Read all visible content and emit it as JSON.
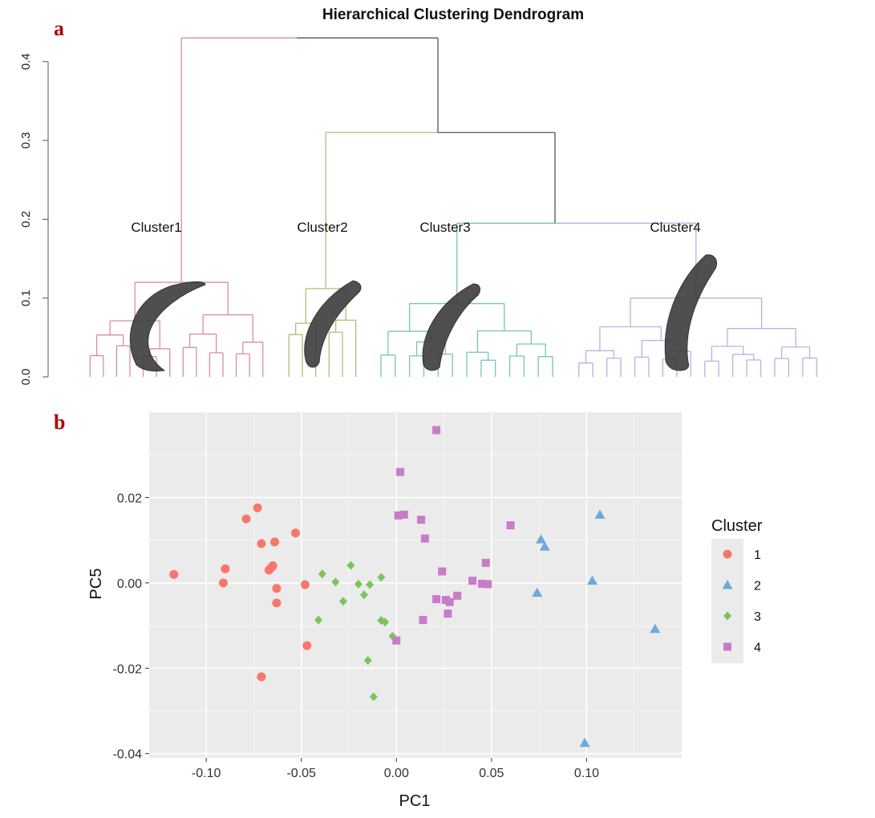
{
  "panels": {
    "a": "a",
    "b": "b"
  },
  "chart_data": [
    {
      "type": "dendrogram",
      "title": "Hierarchical Clustering Dendrogram",
      "ylim": [
        0,
        0.42
      ],
      "yticks": [
        0.0,
        0.1,
        0.2,
        0.3,
        0.4
      ],
      "ytick_labels": [
        "0.0",
        "0.1",
        "0.2",
        "0.3",
        "0.4"
      ],
      "root_height": 0.43,
      "clusters": [
        {
          "label": "Cluster1",
          "color": "#d98ca0",
          "leaves": 14,
          "merge_height": 0.12,
          "join_height": 0.43
        },
        {
          "label": "Cluster2",
          "color": "#b8b87a",
          "leaves": 6,
          "merge_height": 0.112,
          "join_height": 0.31
        },
        {
          "label": "Cluster3",
          "color": "#74c6b4",
          "leaves": 13,
          "merge_height": 0.093,
          "join_height": 0.195
        },
        {
          "label": "Cluster4",
          "color": "#b8b0e6",
          "leaves": 18,
          "merge_height": 0.1,
          "join_height": 0.195
        }
      ],
      "internal_color": "#555555"
    },
    {
      "type": "scatter",
      "xlabel": "PC1",
      "ylabel": "PC5",
      "xlim": [
        -0.13,
        0.15
      ],
      "ylim": [
        -0.041,
        0.04
      ],
      "xticks": [
        -0.1,
        -0.05,
        0.0,
        0.05,
        0.1
      ],
      "xtick_labels": [
        "-0.10",
        "-0.05",
        "0.00",
        "0.05",
        "0.10"
      ],
      "yticks": [
        -0.04,
        -0.02,
        0.0,
        0.02
      ],
      "ytick_labels": [
        "-0.04",
        "-0.02",
        "0.00",
        "0.02"
      ],
      "grid": true,
      "background": "#ebebeb",
      "legend": {
        "title": "Cluster",
        "position": "right"
      },
      "series": [
        {
          "name": "1",
          "color": "#f8766d",
          "marker": "circle",
          "points": [
            [
              -0.117,
              0.002
            ],
            [
              -0.09,
              0.0033
            ],
            [
              -0.091,
              0.0
            ],
            [
              -0.079,
              0.015
            ],
            [
              -0.073,
              0.0176
            ],
            [
              -0.071,
              0.0092
            ],
            [
              -0.067,
              0.003
            ],
            [
              -0.066,
              0.0035
            ],
            [
              -0.065,
              0.004
            ],
            [
              -0.064,
              0.0096
            ],
            [
              -0.063,
              -0.0013
            ],
            [
              -0.063,
              -0.0047
            ],
            [
              -0.053,
              0.0117
            ],
            [
              -0.048,
              -0.0004
            ],
            [
              -0.047,
              -0.0147
            ],
            [
              -0.071,
              -0.022
            ]
          ]
        },
        {
          "name": "2",
          "color": "#6fa8dc",
          "marker": "triangle",
          "points": [
            [
              0.076,
              0.0102
            ],
            [
              0.078,
              0.0085
            ],
            [
              0.107,
              0.016
            ],
            [
              0.074,
              -0.0023
            ],
            [
              0.103,
              0.0005
            ],
            [
              0.136,
              -0.0108
            ],
            [
              0.099,
              -0.0375
            ]
          ]
        },
        {
          "name": "3",
          "color": "#7cc35e",
          "marker": "diamond",
          "points": [
            [
              -0.024,
              0.0041
            ],
            [
              -0.039,
              0.0021
            ],
            [
              -0.032,
              0.0002
            ],
            [
              -0.02,
              -0.0003
            ],
            [
              -0.014,
              -0.0004
            ],
            [
              -0.008,
              0.0013
            ],
            [
              -0.017,
              -0.0028
            ],
            [
              -0.028,
              -0.0043
            ],
            [
              -0.041,
              -0.0087
            ],
            [
              -0.008,
              -0.0088
            ],
            [
              -0.006,
              -0.0092
            ],
            [
              -0.002,
              -0.0125
            ],
            [
              -0.015,
              -0.0182
            ],
            [
              -0.012,
              -0.0267
            ]
          ]
        },
        {
          "name": "4",
          "color": "#c77cc7",
          "marker": "square",
          "points": [
            [
              0.021,
              0.0358
            ],
            [
              0.002,
              0.026
            ],
            [
              0.001,
              0.0158
            ],
            [
              0.004,
              0.016
            ],
            [
              0.013,
              0.0148
            ],
            [
              0.015,
              0.0104
            ],
            [
              0.06,
              0.0135
            ],
            [
              0.047,
              0.0047
            ],
            [
              0.024,
              0.0027
            ],
            [
              0.04,
              0.0005
            ],
            [
              0.045,
              -0.0002
            ],
            [
              0.048,
              -0.0003
            ],
            [
              0.032,
              -0.003
            ],
            [
              0.021,
              -0.0038
            ],
            [
              0.026,
              -0.004
            ],
            [
              0.028,
              -0.0045
            ],
            [
              0.027,
              -0.0072
            ],
            [
              0.014,
              -0.0087
            ],
            [
              0.0,
              -0.0135
            ]
          ]
        }
      ]
    }
  ]
}
